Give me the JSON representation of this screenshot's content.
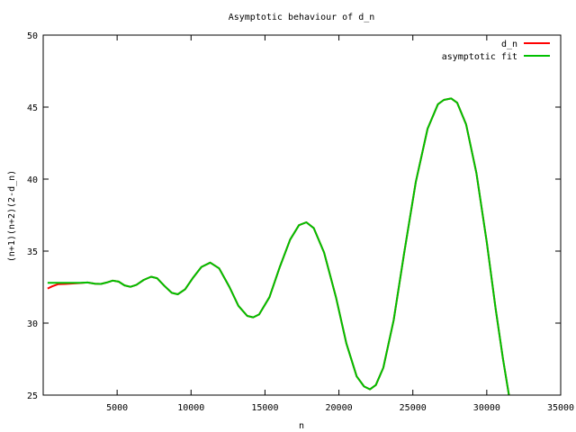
{
  "chart_data": {
    "type": "line",
    "title": "Asymptotic behaviour of d_n",
    "xlabel": "n",
    "ylabel": "(n+1)(n+2)(2-d_n)",
    "xlim": [
      0,
      35000
    ],
    "ylim": [
      25,
      50
    ],
    "xticks": [
      5000,
      10000,
      15000,
      20000,
      25000,
      30000,
      35000
    ],
    "yticks": [
      25,
      30,
      35,
      40,
      45,
      50
    ],
    "grid": false,
    "legend_position": "top-right",
    "series": [
      {
        "name": "d_n",
        "color": "#ff0000",
        "points": [
          [
            300,
            32.4
          ],
          [
            600,
            32.55
          ],
          [
            1000,
            32.7
          ],
          [
            1500,
            32.72
          ],
          [
            2000,
            32.75
          ],
          [
            2500,
            32.78
          ],
          [
            3000,
            32.82
          ],
          [
            3500,
            32.74
          ],
          [
            3900,
            32.72
          ],
          [
            4300,
            32.82
          ],
          [
            4700,
            32.95
          ],
          [
            5100,
            32.88
          ],
          [
            5500,
            32.62
          ],
          [
            5900,
            32.52
          ],
          [
            6300,
            32.65
          ],
          [
            6800,
            33.0
          ],
          [
            7300,
            33.22
          ],
          [
            7700,
            33.12
          ],
          [
            8200,
            32.58
          ],
          [
            8700,
            32.1
          ],
          [
            9100,
            32.0
          ],
          [
            9600,
            32.35
          ],
          [
            10100,
            33.1
          ],
          [
            10700,
            33.9
          ],
          [
            11300,
            34.2
          ],
          [
            11900,
            33.8
          ],
          [
            12600,
            32.5
          ],
          [
            13200,
            31.2
          ],
          [
            13800,
            30.5
          ],
          [
            14200,
            30.4
          ],
          [
            14600,
            30.6
          ],
          [
            15300,
            31.8
          ],
          [
            16000,
            33.9
          ],
          [
            16700,
            35.8
          ],
          [
            17300,
            36.8
          ],
          [
            17800,
            37.0
          ],
          [
            18300,
            36.6
          ],
          [
            19000,
            34.9
          ],
          [
            19800,
            31.8
          ],
          [
            20500,
            28.6
          ],
          [
            21200,
            26.3
          ],
          [
            21700,
            25.6
          ],
          [
            22100,
            25.4
          ],
          [
            22500,
            25.7
          ],
          [
            23000,
            26.9
          ],
          [
            23700,
            30.2
          ],
          [
            24400,
            34.8
          ],
          [
            25200,
            39.8
          ],
          [
            26000,
            43.5
          ],
          [
            26700,
            45.2
          ],
          [
            27100,
            45.5
          ],
          [
            27600,
            45.6
          ],
          [
            28000,
            45.3
          ],
          [
            28600,
            43.8
          ],
          [
            29300,
            40.4
          ],
          [
            30000,
            35.6
          ],
          [
            30600,
            31.0
          ],
          [
            31100,
            27.5
          ],
          [
            31500,
            25.0
          ]
        ]
      },
      {
        "name": "asymptotic  fit",
        "color": "#00c000",
        "points": [
          [
            300,
            32.8
          ],
          [
            600,
            32.8
          ],
          [
            1000,
            32.8
          ],
          [
            1500,
            32.8
          ],
          [
            2000,
            32.8
          ],
          [
            2500,
            32.8
          ],
          [
            3000,
            32.82
          ],
          [
            3500,
            32.74
          ],
          [
            3900,
            32.72
          ],
          [
            4300,
            32.82
          ],
          [
            4700,
            32.95
          ],
          [
            5100,
            32.88
          ],
          [
            5500,
            32.62
          ],
          [
            5900,
            32.52
          ],
          [
            6300,
            32.65
          ],
          [
            6800,
            33.0
          ],
          [
            7300,
            33.22
          ],
          [
            7700,
            33.12
          ],
          [
            8200,
            32.58
          ],
          [
            8700,
            32.1
          ],
          [
            9100,
            32.0
          ],
          [
            9600,
            32.35
          ],
          [
            10100,
            33.1
          ],
          [
            10700,
            33.9
          ],
          [
            11300,
            34.2
          ],
          [
            11900,
            33.8
          ],
          [
            12600,
            32.5
          ],
          [
            13200,
            31.2
          ],
          [
            13800,
            30.5
          ],
          [
            14200,
            30.4
          ],
          [
            14600,
            30.6
          ],
          [
            15300,
            31.8
          ],
          [
            16000,
            33.9
          ],
          [
            16700,
            35.8
          ],
          [
            17300,
            36.8
          ],
          [
            17800,
            37.0
          ],
          [
            18300,
            36.6
          ],
          [
            19000,
            34.9
          ],
          [
            19800,
            31.8
          ],
          [
            20500,
            28.6
          ],
          [
            21200,
            26.3
          ],
          [
            21700,
            25.6
          ],
          [
            22100,
            25.4
          ],
          [
            22500,
            25.7
          ],
          [
            23000,
            26.9
          ],
          [
            23700,
            30.2
          ],
          [
            24400,
            34.8
          ],
          [
            25200,
            39.8
          ],
          [
            26000,
            43.5
          ],
          [
            26700,
            45.2
          ],
          [
            27100,
            45.5
          ],
          [
            27600,
            45.6
          ],
          [
            28000,
            45.3
          ],
          [
            28600,
            43.8
          ],
          [
            29300,
            40.4
          ],
          [
            30000,
            35.6
          ],
          [
            30600,
            31.0
          ],
          [
            31100,
            27.5
          ],
          [
            31500,
            25.0
          ]
        ]
      }
    ]
  }
}
